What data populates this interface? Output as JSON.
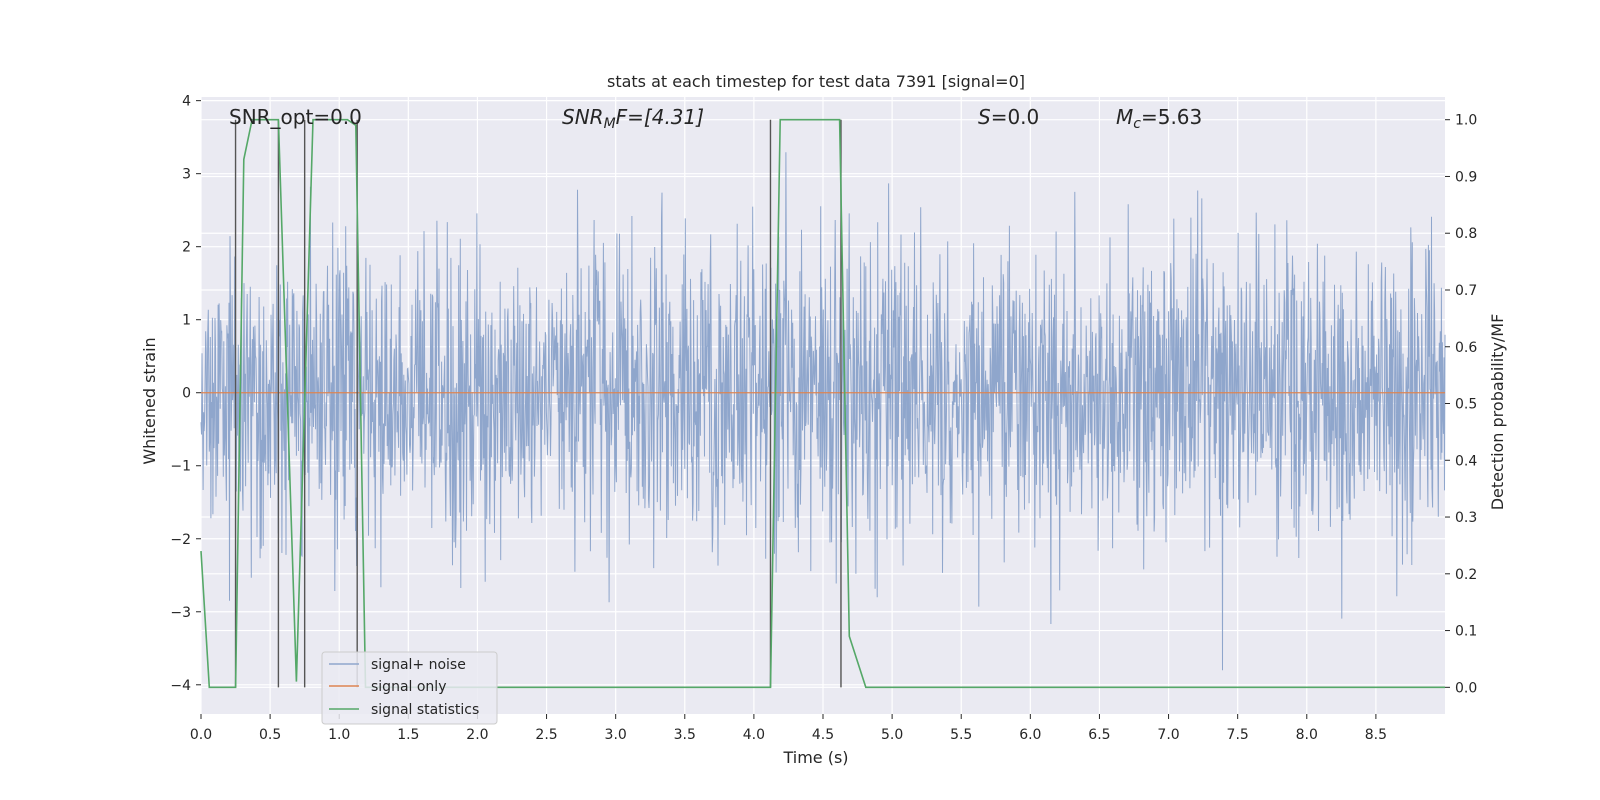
{
  "chart_data": {
    "type": "line",
    "title": "stats at each timestep for test data 7391 [signal=0]",
    "xlabel": "Time (s)",
    "ylabel": "Whitened strain",
    "ylabel_right": "Detection probability/MF",
    "xlim": [
      0.0,
      9.0
    ],
    "ylim": [
      -4.4,
      4.05
    ],
    "ylim_right": [
      -0.047,
      1.04
    ],
    "xticks": [
      0.0,
      0.5,
      1.0,
      1.5,
      2.0,
      2.5,
      3.0,
      3.5,
      4.0,
      4.5,
      5.0,
      5.5,
      6.0,
      6.5,
      7.0,
      7.5,
      8.0,
      8.5
    ],
    "xtick_labels": [
      "0.0",
      "0.5",
      "1.0",
      "1.5",
      "2.0",
      "2.5",
      "3.0",
      "3.5",
      "4.0",
      "4.5",
      "5.0",
      "5.5",
      "6.0",
      "6.5",
      "7.0",
      "7.5",
      "8.0",
      "8.5"
    ],
    "yticks": [
      4,
      3,
      2,
      1,
      0,
      -1,
      -2,
      -3,
      -4
    ],
    "ytick_labels": [
      "4",
      "3",
      "2",
      "1",
      "0",
      "−1",
      "−2",
      "−3",
      "−4"
    ],
    "yticks_right": [
      1.0,
      0.9,
      0.8,
      0.7,
      0.6,
      0.5,
      0.4,
      0.3,
      0.2,
      0.1,
      0.0
    ],
    "ytick_labels_right": [
      "1.0",
      "0.9",
      "0.8",
      "0.7",
      "0.6",
      "0.5",
      "0.4",
      "0.3",
      "0.2",
      "0.1",
      "0.0"
    ],
    "annotations": {
      "snr_opt": "SNR_opt=0.0",
      "snr_mf_main": "SNR",
      "snr_mf_sub": "M",
      "snr_mf_tail": "F=[4.31]",
      "s_main": "S",
      "s_tail": "=0.0",
      "mc_main": "M",
      "mc_sub": "c",
      "mc_tail": "=5.63"
    },
    "legend": {
      "position": "lower-left",
      "entries": [
        "signal+ noise",
        "signal only",
        "signal statistics"
      ]
    },
    "colors": {
      "noise": "#8fa6cc",
      "signal_only": "#dd8452",
      "statistics": "#55a868",
      "marker": "#555555",
      "background": "#eaeaf2",
      "grid": "#ffffff"
    },
    "series": [
      {
        "name": "signal+ noise",
        "kind": "noise",
        "envelope_sigma": 1.0,
        "typical_max": 2.5,
        "typical_min": -2.5,
        "extreme_max": 3.55,
        "extreme_min": -3.8
      },
      {
        "name": "signal only",
        "kind": "line",
        "x": [
          0.0,
          9.0
        ],
        "y": [
          0.0,
          0.0
        ]
      },
      {
        "name": "signal statistics",
        "kind": "line",
        "axis": "right",
        "x": [
          0.0,
          0.06,
          0.25,
          0.31,
          0.37,
          0.56,
          0.69,
          0.81,
          1.06,
          1.12,
          1.19,
          4.12,
          4.19,
          4.62,
          4.69,
          4.81,
          9.0
        ],
        "y": [
          0.24,
          0.0,
          0.0,
          0.93,
          1.0,
          1.0,
          0.01,
          1.0,
          1.0,
          0.99,
          0.0,
          0.0,
          1.0,
          1.0,
          0.09,
          0.0,
          0.0
        ]
      }
    ],
    "markers": {
      "x": [
        0.25,
        0.56,
        0.75,
        1.13,
        4.12,
        4.63
      ],
      "y_top": 1.0,
      "y_bottom": 0.0
    }
  }
}
